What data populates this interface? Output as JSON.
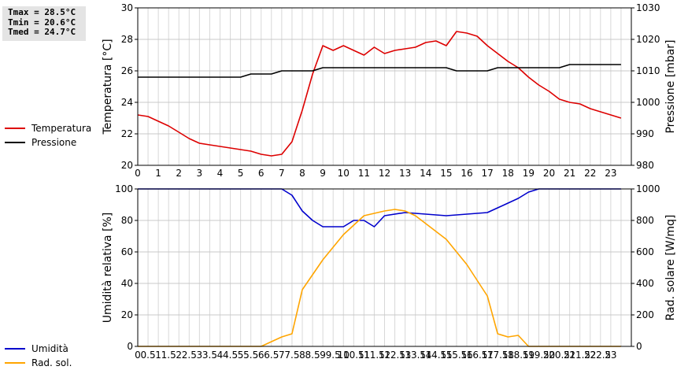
{
  "stats": {
    "tmax": "Tmax = 28.5°C",
    "tmin": "Tmin = 20.6°C",
    "tmed": "Tmed = 24.7°C"
  },
  "legend_top": [
    {
      "label": "Temperatura",
      "color": "#dd0000"
    },
    {
      "label": "Pressione",
      "color": "#000000"
    }
  ],
  "legend_bottom": [
    {
      "label": "Umidità",
      "color": "#0000cc"
    },
    {
      "label": "Rad. sol.",
      "color": "#ffa500"
    }
  ],
  "chart_data": [
    {
      "type": "line",
      "xlabel": "",
      "ylabel": "Temperatura [°C]",
      "y2label": "Pressione [mbar]",
      "xlim": [
        0,
        24
      ],
      "ylim": [
        20,
        30
      ],
      "y2lim": [
        980,
        1030
      ],
      "xticks": [
        "0",
        "1",
        "2",
        "3",
        "4",
        "5",
        "6",
        "7",
        "8",
        "9",
        "10",
        "11",
        "12",
        "13",
        "14",
        "15",
        "16",
        "17",
        "18",
        "19",
        "20",
        "21",
        "22",
        "23"
      ],
      "yticks": [
        "20",
        "22",
        "24",
        "26",
        "28",
        "30"
      ],
      "y2ticks": [
        "980",
        "990",
        "1000",
        "1010",
        "1020",
        "1030"
      ],
      "grid": true,
      "series": [
        {
          "name": "Temperatura",
          "axis": "left",
          "color": "#dd0000",
          "x": [
            0,
            0.5,
            1,
            1.5,
            2,
            2.5,
            3,
            3.5,
            4,
            4.5,
            5,
            5.5,
            6,
            6.5,
            7,
            7.5,
            8,
            8.5,
            9,
            9.5,
            10,
            10.5,
            11,
            11.5,
            12,
            12.5,
            13,
            13.5,
            14,
            14.5,
            15,
            15.5,
            16,
            16.5,
            17,
            17.5,
            18,
            18.5,
            19,
            19.5,
            20,
            20.5,
            21,
            21.5,
            22,
            22.5,
            23,
            23.5
          ],
          "y": [
            23.2,
            23.1,
            22.8,
            22.5,
            22.1,
            21.7,
            21.4,
            21.3,
            21.2,
            21.1,
            21.0,
            20.9,
            20.7,
            20.6,
            20.7,
            21.5,
            23.5,
            25.8,
            27.6,
            27.3,
            27.6,
            27.3,
            27.0,
            27.5,
            27.1,
            27.3,
            27.4,
            27.5,
            27.8,
            27.9,
            27.6,
            28.5,
            28.4,
            28.2,
            27.6,
            27.1,
            26.6,
            26.2,
            25.6,
            25.1,
            24.7,
            24.2,
            24.0,
            23.9,
            23.6,
            23.4,
            23.2,
            23.0
          ]
        },
        {
          "name": "Pressione",
          "axis": "right",
          "color": "#000000",
          "x": [
            0,
            5,
            5.5,
            6.5,
            7,
            8.5,
            9,
            15,
            15.5,
            17,
            17.5,
            20.5,
            21,
            23.5
          ],
          "y": [
            1008,
            1008,
            1009,
            1009,
            1010,
            1010,
            1011,
            1011,
            1010,
            1010,
            1011,
            1011,
            1012,
            1012
          ]
        }
      ]
    },
    {
      "type": "line",
      "xlabel": "",
      "ylabel": "Umidità relativa [%]",
      "y2label": "Rad. solare [W/mq]",
      "xlim": [
        0,
        24
      ],
      "ylim": [
        0,
        100
      ],
      "y2lim": [
        0,
        1000
      ],
      "xticks": [
        "0",
        "0.5",
        "1",
        "1.5",
        "2",
        "2.5",
        "3",
        "3.5",
        "4",
        "4.5",
        "5",
        "5.5",
        "6",
        "6.5",
        "7",
        "7.5",
        "8",
        "8.5",
        "9",
        "9.5",
        "10",
        "10.5",
        "11",
        "11.5",
        "12",
        "12.5",
        "13",
        "13.5",
        "14",
        "14.5",
        "15",
        "15.5",
        "16",
        "16.5",
        "17",
        "17.5",
        "18",
        "18.5",
        "19",
        "19.5",
        "20",
        "20.5",
        "21",
        "21.5",
        "22",
        "22.5",
        "23"
      ],
      "yticks": [
        "0",
        "20",
        "40",
        "60",
        "80",
        "100"
      ],
      "y2ticks": [
        "0",
        "200",
        "400",
        "600",
        "800",
        "1000"
      ],
      "grid": true,
      "series": [
        {
          "name": "Umidità",
          "axis": "left",
          "color": "#0000cc",
          "x": [
            0,
            7,
            7.5,
            8,
            8.5,
            9,
            10,
            10.5,
            11,
            11.5,
            12,
            13,
            14,
            15,
            16,
            17,
            17.5,
            18,
            18.5,
            19,
            19.5,
            23.5
          ],
          "y": [
            100,
            100,
            96,
            86,
            80,
            76,
            76,
            80,
            80,
            76,
            83,
            85,
            84,
            83,
            84,
            85,
            88,
            91,
            94,
            98,
            100,
            100
          ]
        },
        {
          "name": "Rad. sol.",
          "axis": "right",
          "color": "#ffa500",
          "x": [
            0,
            6,
            6.5,
            7,
            7.5,
            8,
            9,
            10,
            11,
            12,
            12.5,
            13,
            13.5,
            14,
            15,
            16,
            17,
            17.5,
            18,
            18.5,
            19,
            23.5
          ],
          "y": [
            0,
            0,
            30,
            60,
            80,
            360,
            550,
            710,
            830,
            860,
            870,
            860,
            830,
            780,
            680,
            520,
            320,
            80,
            60,
            70,
            0,
            0
          ]
        }
      ]
    }
  ]
}
